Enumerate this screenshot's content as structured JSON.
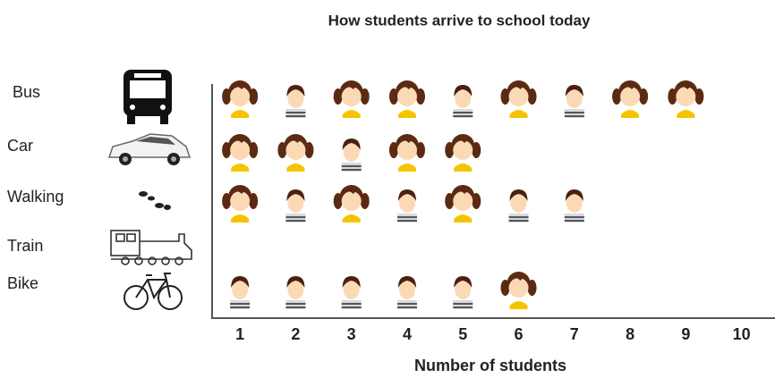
{
  "chart_data": {
    "type": "pictograph",
    "title": "How students arrive to school today",
    "x_label": "Number of students",
    "categories": [
      "Bus",
      "Car",
      "Walking",
      "Train",
      "Bike"
    ],
    "values": [
      9,
      5,
      7,
      0,
      6
    ],
    "xlim": [
      0.5,
      10.6
    ],
    "xticks": [
      1,
      2,
      3,
      4,
      5,
      6,
      7,
      8,
      9,
      10
    ]
  }
}
